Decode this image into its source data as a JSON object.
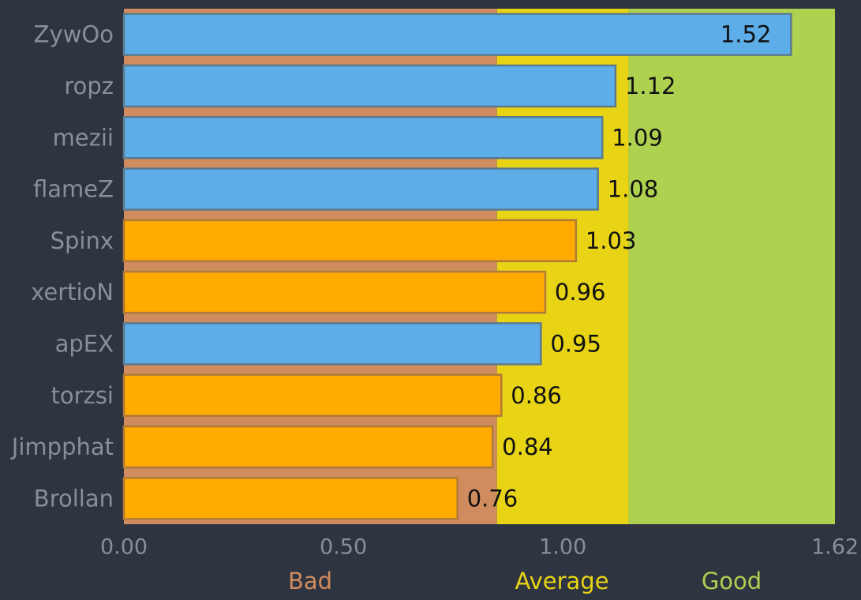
{
  "chart_data": {
    "type": "bar",
    "orientation": "horizontal",
    "categories": [
      "ZywOo",
      "ropz",
      "mezii",
      "flameZ",
      "Spinx",
      "xertioN",
      "apEX",
      "torzsi",
      "Jimpphat",
      "Brollan"
    ],
    "values": [
      1.52,
      1.12,
      1.09,
      1.08,
      1.03,
      0.96,
      0.95,
      0.86,
      0.84,
      0.76
    ],
    "value_labels": [
      "1.52",
      "1.12",
      "1.09",
      "1.08",
      "1.03",
      "0.96",
      "0.95",
      "0.86",
      "0.84",
      "0.76"
    ],
    "bar_colors": [
      "#5dade8",
      "#5dade8",
      "#5dade8",
      "#5dade8",
      "#ffab00",
      "#ffab00",
      "#5dade8",
      "#ffab00",
      "#ffab00",
      "#ffab00"
    ],
    "xlim": [
      0,
      1.62
    ],
    "x_ticks": [
      0,
      0.5,
      1.0,
      1.62
    ],
    "x_tick_labels": [
      "0.00",
      "0.50",
      "1.00",
      "1.62"
    ],
    "zones": [
      {
        "label": "Bad",
        "from": 0,
        "to": 0.85,
        "color": "#d08c5e"
      },
      {
        "label": "Average",
        "from": 0.85,
        "to": 1.15,
        "color": "#e8d414"
      },
      {
        "label": "Good",
        "from": 1.15,
        "to": 1.62,
        "color": "#aed150"
      }
    ],
    "colors": {
      "background": "#2e3440",
      "blue_bar": "#5dade8",
      "orange_bar": "#ffab00",
      "blue_border": "#5b7a8e",
      "orange_border": "#b07a3a",
      "tick_text": "#8a8f97",
      "value_text": "#111111"
    }
  }
}
